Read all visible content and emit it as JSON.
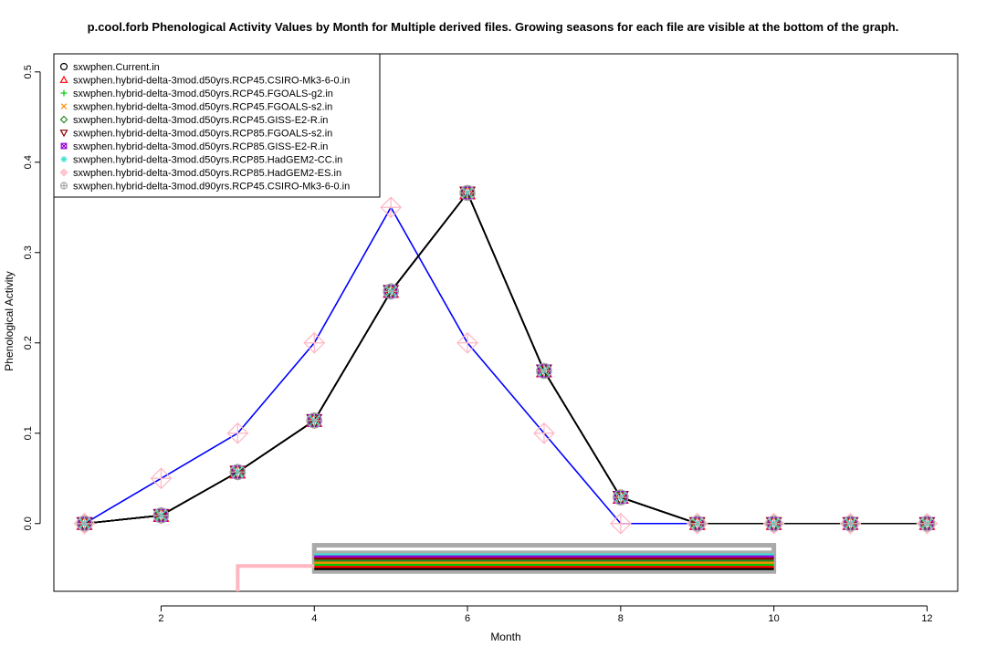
{
  "chart_data": {
    "type": "line",
    "title": "p.cool.forb Phenological Activity Values by Month for Multiple derived files. Growing seasons for each file are visible at the bottom of the graph.",
    "xlabel": "Month",
    "ylabel": "Phenological Activity",
    "xlim": [
      0.6,
      12.4
    ],
    "ylim": [
      -0.075,
      0.52
    ],
    "x_ticks": [
      2,
      4,
      6,
      8,
      10,
      12
    ],
    "y_ticks": [
      0.0,
      0.1,
      0.2,
      0.3,
      0.4,
      0.5
    ],
    "x_tick_labels": [
      "2",
      "4",
      "6",
      "8",
      "10",
      "12"
    ],
    "y_tick_labels": [
      "0.0",
      "0.1",
      "0.2",
      "0.3",
      "0.4",
      "0.5"
    ],
    "legend_position": "top-left",
    "x": [
      1,
      2,
      3,
      4,
      5,
      6,
      7,
      8,
      9,
      10,
      11,
      12
    ],
    "series": [
      {
        "name": "sxwphen.Current.in",
        "color": "#000000",
        "marker": "circle",
        "values": [
          0.0,
          0.009,
          0.057,
          0.114,
          0.257,
          0.366,
          0.169,
          0.029,
          0.0,
          0.0,
          0.0,
          0.0
        ],
        "season": [
          4,
          10
        ]
      },
      {
        "name": "sxwphen.hybrid-delta-3mod.d50yrs.RCP45.CSIRO-Mk3-6-0.in",
        "color": "#ff0000",
        "marker": "triangle-up",
        "values": [
          0.0,
          0.009,
          0.057,
          0.114,
          0.257,
          0.366,
          0.169,
          0.029,
          0.0,
          0.0,
          0.0,
          0.0
        ],
        "season": [
          4,
          10
        ]
      },
      {
        "name": "sxwphen.hybrid-delta-3mod.d50yrs.RCP45.FGOALS-g2.in",
        "color": "#00cc00",
        "marker": "plus",
        "values": [
          0.0,
          0.009,
          0.057,
          0.114,
          0.257,
          0.366,
          0.169,
          0.029,
          0.0,
          0.0,
          0.0,
          0.0
        ],
        "season": [
          4,
          10
        ]
      },
      {
        "name": "sxwphen.hybrid-delta-3mod.d50yrs.RCP45.FGOALS-s2.in",
        "color": "#ff8c00",
        "marker": "cross",
        "values": [
          0.0,
          0.009,
          0.057,
          0.114,
          0.257,
          0.366,
          0.169,
          0.029,
          0.0,
          0.0,
          0.0,
          0.0
        ],
        "season": [
          4,
          10
        ]
      },
      {
        "name": "sxwphen.hybrid-delta-3mod.d50yrs.RCP45.GISS-E2-R.in",
        "color": "#228b22",
        "marker": "diamond",
        "values": [
          0.0,
          0.009,
          0.057,
          0.114,
          0.257,
          0.366,
          0.169,
          0.029,
          0.0,
          0.0,
          0.0,
          0.0
        ],
        "season": [
          4,
          10
        ]
      },
      {
        "name": "sxwphen.hybrid-delta-3mod.d50yrs.RCP85.FGOALS-s2.in",
        "color": "#8b0000",
        "marker": "triangle-down",
        "values": [
          0.0,
          0.009,
          0.057,
          0.114,
          0.257,
          0.366,
          0.169,
          0.029,
          0.0,
          0.0,
          0.0,
          0.0
        ],
        "season": [
          4,
          10
        ]
      },
      {
        "name": "sxwphen.hybrid-delta-3mod.d50yrs.RCP85.GISS-E2-R.in",
        "color": "#9400d3",
        "marker": "square-cross",
        "values": [
          0.0,
          0.009,
          0.057,
          0.114,
          0.257,
          0.366,
          0.169,
          0.029,
          0.0,
          0.0,
          0.0,
          0.0
        ],
        "season": [
          4,
          10
        ]
      },
      {
        "name": "sxwphen.hybrid-delta-3mod.d50yrs.RCP85.HadGEM2-CC.in",
        "color": "#40e0d0",
        "marker": "asterisk",
        "values": [
          0.0,
          0.009,
          0.057,
          0.114,
          0.257,
          0.366,
          0.169,
          0.029,
          0.0,
          0.0,
          0.0,
          0.0
        ],
        "season": [
          4,
          10
        ]
      },
      {
        "name": "sxwphen.hybrid-delta-3mod.d50yrs.RCP85.HadGEM2-ES.in",
        "color": "#ffb6c1",
        "marker": "diamond-plus",
        "line_color": "#0000ff",
        "values": [
          0.0,
          0.05,
          0.1,
          0.2,
          0.35,
          0.2,
          0.1,
          0.0,
          0.0,
          0.0,
          0.0,
          0.0
        ],
        "season": [
          3,
          4
        ]
      },
      {
        "name": "sxwphen.hybrid-delta-3mod.d90yrs.RCP45.CSIRO-Mk3-6-0.in",
        "color": "#aaaaaa",
        "marker": "circle-plus",
        "values": [
          0.0,
          0.009,
          0.057,
          0.114,
          0.257,
          0.366,
          0.169,
          0.029,
          0.0,
          0.0,
          0.0,
          0.0
        ],
        "season": [
          4,
          10
        ]
      }
    ]
  }
}
